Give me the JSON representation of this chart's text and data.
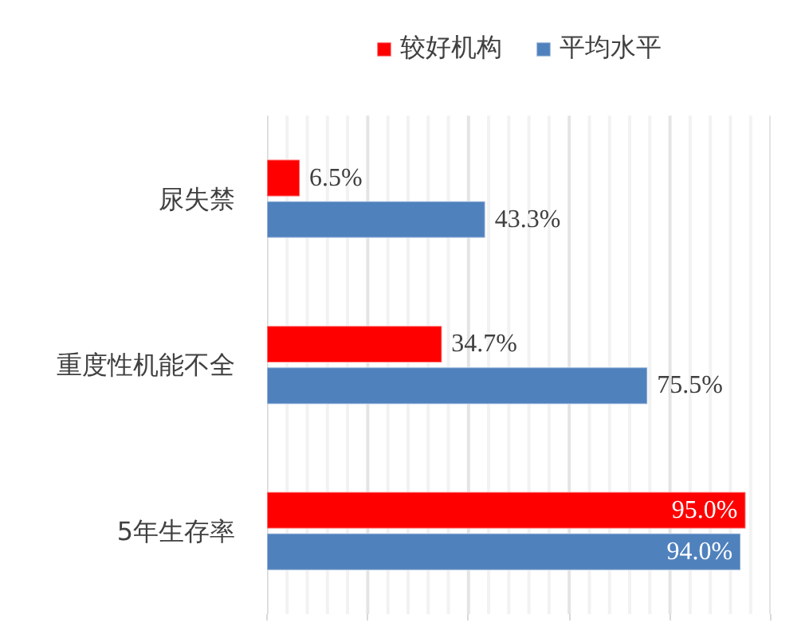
{
  "chart_data": {
    "type": "bar",
    "orientation": "horizontal",
    "categories": [
      "尿失禁",
      "重度性机能不全",
      "5年生存率"
    ],
    "series": [
      {
        "name": "较好机构",
        "color": "#ff0000",
        "values": [
          6.5,
          34.7,
          95.0
        ],
        "value_labels": [
          "6.5%",
          "34.7%",
          "95.0%"
        ]
      },
      {
        "name": "平均水平",
        "color": "#4f81bd",
        "values": [
          43.3,
          75.5,
          94.0
        ],
        "value_labels": [
          "43.3%",
          "75.5%",
          "94.0%"
        ]
      }
    ],
    "xlim": [
      0,
      100
    ],
    "xticks": [
      {
        "value": 0,
        "label": null
      },
      {
        "value": 20,
        "label": null
      },
      {
        "value": 40,
        "label": null
      },
      {
        "value": 60,
        "label": null
      },
      {
        "value": 80,
        "label": null
      },
      {
        "value": 100,
        "label": null
      }
    ],
    "grid": "x",
    "legend": "top"
  }
}
